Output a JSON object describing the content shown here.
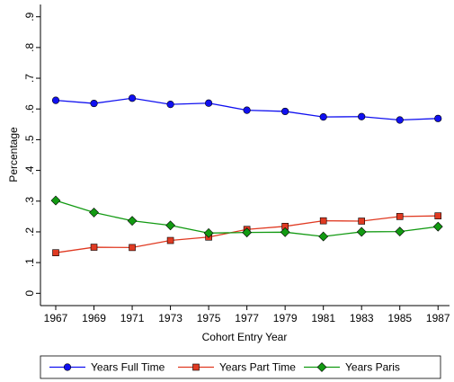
{
  "chart_data": {
    "type": "line",
    "x_label": "Cohort Entry Year",
    "y_label": "Percentage",
    "x": [
      1967,
      1969,
      1971,
      1973,
      1975,
      1977,
      1979,
      1981,
      1983,
      1985,
      1987
    ],
    "series": [
      {
        "name": "Years Full Time",
        "color": "#1010f0",
        "marker": "circle",
        "values": [
          0.628,
          0.618,
          0.635,
          0.615,
          0.619,
          0.596,
          0.592,
          0.574,
          0.575,
          0.564,
          0.569
        ]
      },
      {
        "name": "Years Part Time",
        "color": "#e03a22",
        "marker": "square",
        "values": [
          0.132,
          0.15,
          0.149,
          0.172,
          0.183,
          0.208,
          0.218,
          0.236,
          0.235,
          0.25,
          0.252
        ]
      },
      {
        "name": "Years Paris",
        "color": "#129a12",
        "marker": "diamond",
        "values": [
          0.302,
          0.263,
          0.236,
          0.221,
          0.196,
          0.198,
          0.199,
          0.185,
          0.2,
          0.201,
          0.217
        ]
      }
    ],
    "xlim": [
      1966.2,
      1987.6
    ],
    "xticks": [
      1967,
      1969,
      1971,
      1973,
      1975,
      1977,
      1979,
      1981,
      1983,
      1985,
      1987
    ],
    "ylim": [
      -0.04,
      0.94
    ],
    "yticks": [
      0,
      {
        "value": 0.1,
        "label": ".1"
      },
      {
        "value": 0.2,
        "label": ".2"
      },
      {
        "value": 0.3,
        "label": ".3"
      },
      {
        "value": 0.4,
        "label": ".4"
      },
      {
        "value": 0.5,
        "label": ".5"
      },
      {
        "value": 0.6,
        "label": ".6"
      },
      {
        "value": 0.7,
        "label": ".7"
      },
      {
        "value": 0.8,
        "label": ".8"
      },
      {
        "value": 0.9,
        "label": ".9"
      }
    ],
    "grid": false,
    "legend": "bottom"
  }
}
